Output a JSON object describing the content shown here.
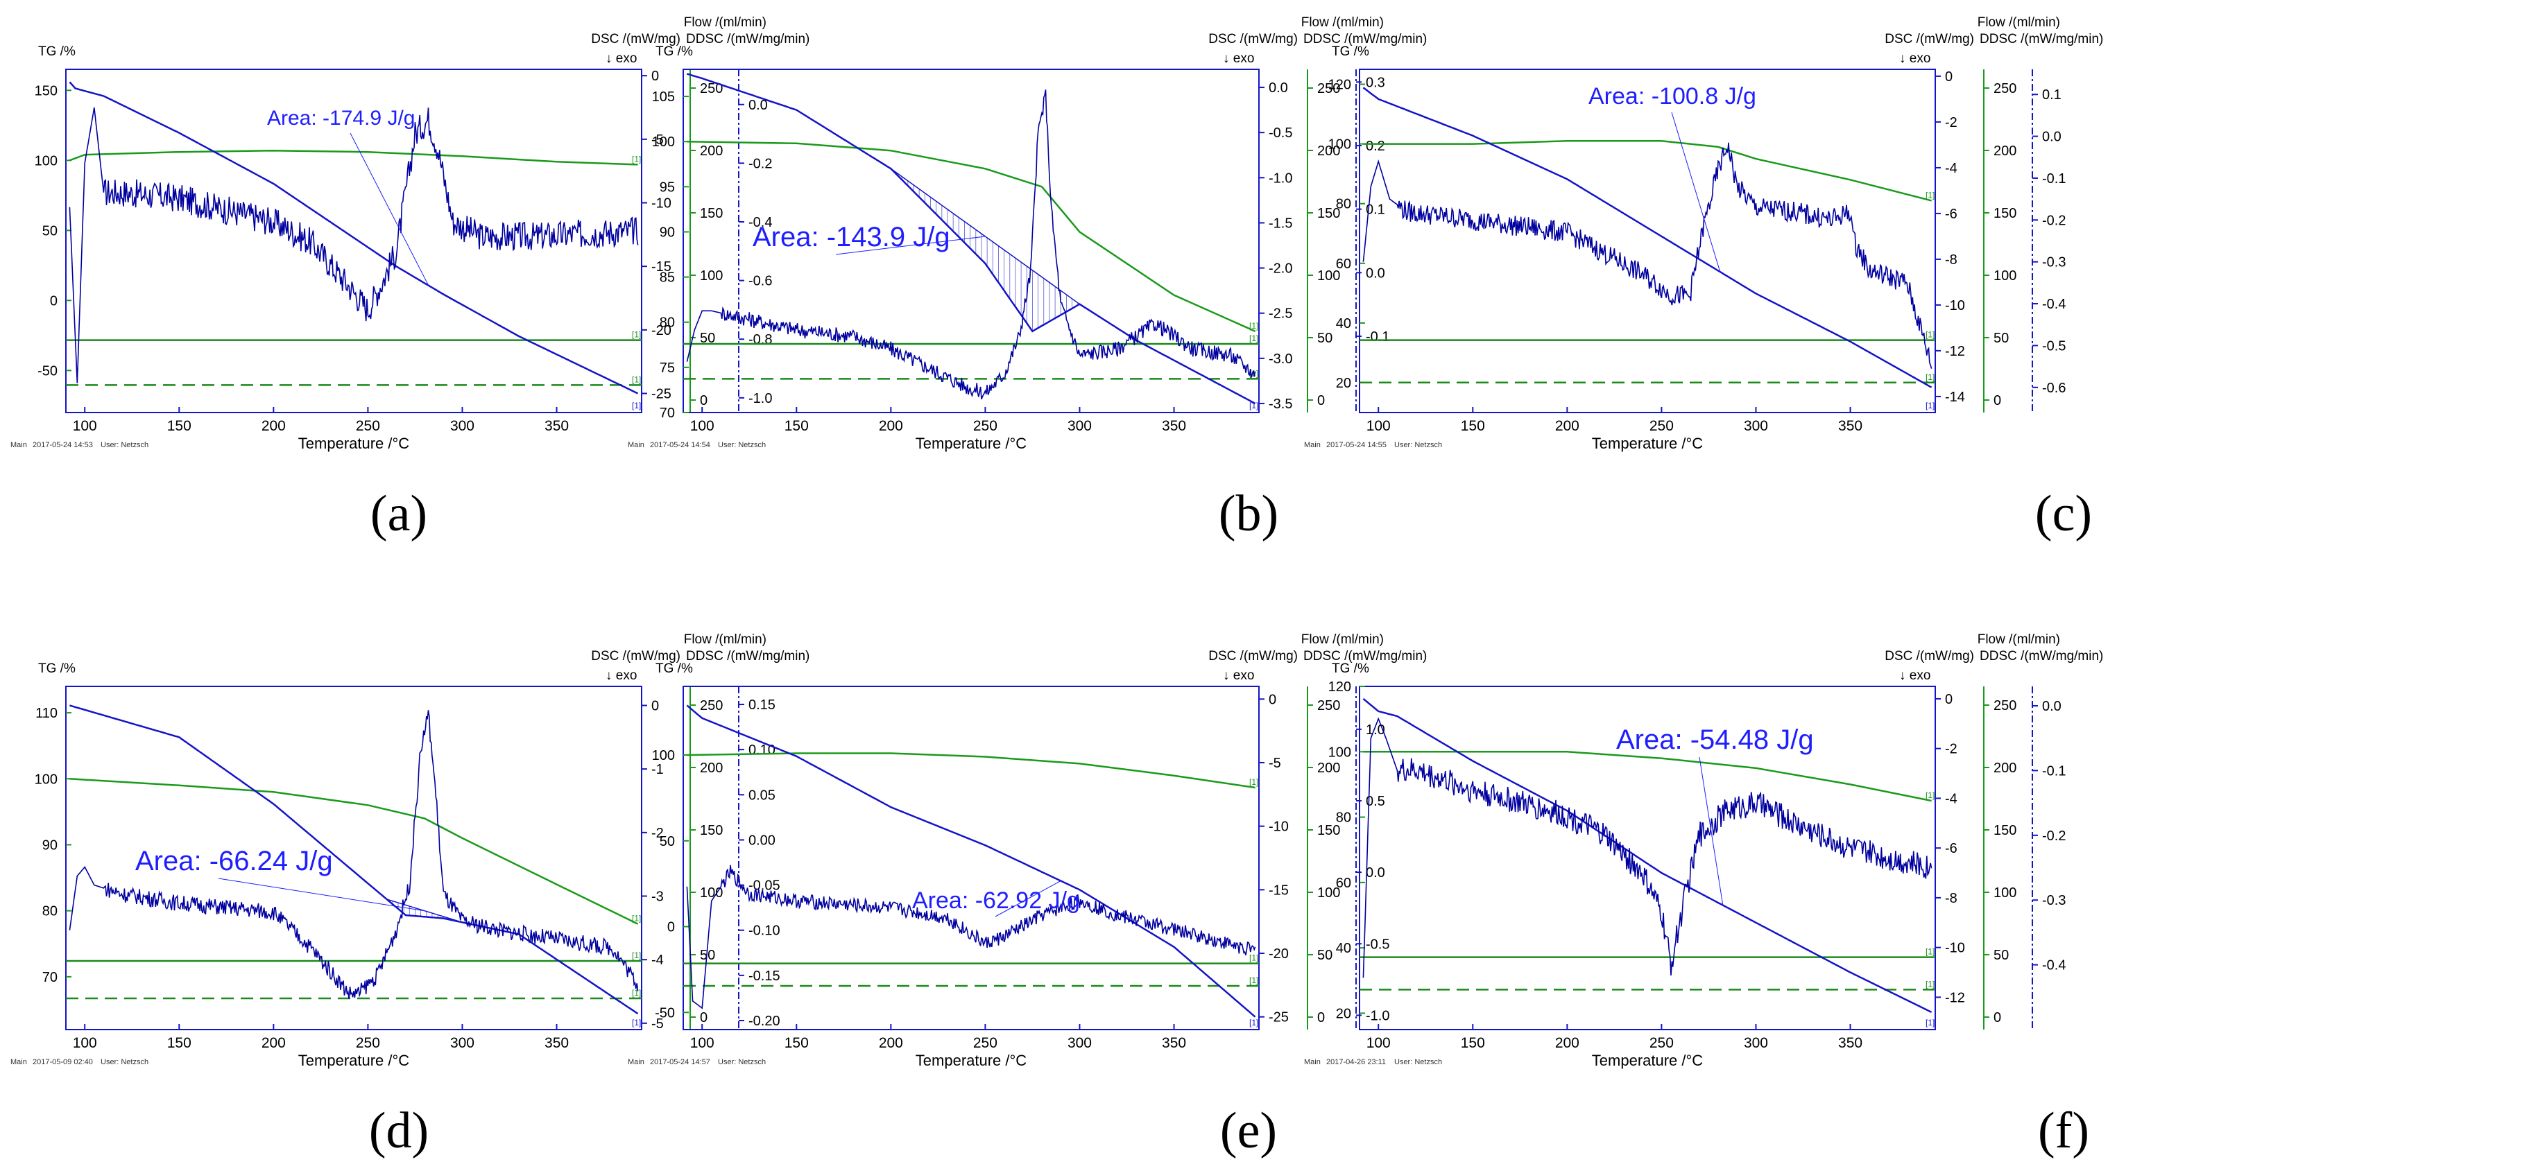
{
  "figure": {
    "axis_titles": {
      "tg": "TG /%",
      "flow": "Flow /(ml/min)",
      "dsc": "DSC /(mW/mg)",
      "ddsc": "DDSC /(mW/mg/min)",
      "exo": "↓ exo",
      "temperature": "Temperature /°C"
    },
    "footer_user": "User: Netzsch",
    "footer_main": "Main",
    "curve_tag": "[1]",
    "colors": {
      "tg": "#1a9a1a",
      "dsc": "#1414c8",
      "ddsc": "#0000a0",
      "flow": "#1a8a1a",
      "annotation": "#1e1eff"
    }
  },
  "chart_data": [
    {
      "panel": "(a)",
      "type": "line",
      "timestamp": "2017-05-24 14:53",
      "annotation": "Area: -174.9 J/g",
      "x": {
        "label": "Temperature /°C",
        "ticks": [
          "100",
          "150",
          "200",
          "250",
          "300",
          "350"
        ],
        "range": [
          90,
          395
        ]
      },
      "tg_axis": {
        "range": [
          -80,
          165
        ],
        "ticks": [
          "150",
          "100",
          "50",
          "0",
          "-50"
        ]
      },
      "dsc_axis": {
        "range": [
          -26.5,
          0.5
        ],
        "ticks": [
          "0",
          "-5",
          "-10",
          "-15",
          "-20",
          "-25"
        ]
      },
      "flow_axis": {
        "range": [
          -10,
          265
        ],
        "ticks": [
          "250",
          "200",
          "150",
          "100",
          "50",
          "0"
        ]
      },
      "ddsc_axis": {
        "range": [
          -1.05,
          0.12
        ],
        "ticks": [
          "0.0",
          "-0.2",
          "-0.4",
          "-0.6",
          "-0.8",
          "-1.0"
        ]
      },
      "tg": {
        "x": [
          92,
          100,
          150,
          200,
          250,
          300,
          350,
          393
        ],
        "y": [
          100,
          104,
          106,
          107,
          106,
          103,
          99,
          97
        ]
      },
      "dsc": {
        "x": [
          92,
          95,
          110,
          150,
          200,
          250,
          265,
          290,
          330,
          393
        ],
        "y": [
          -0.5,
          -1,
          -1.6,
          -4.5,
          -8.5,
          -13.5,
          -15,
          -17.2,
          -20.5,
          -25
        ]
      },
      "ddsc": {
        "x": [
          92,
          96,
          100,
          105,
          110,
          120,
          150,
          200,
          220,
          240,
          250,
          258,
          265,
          275,
          282,
          287,
          295,
          310,
          340,
          393
        ],
        "y": [
          -0.35,
          -0.95,
          -0.2,
          -0.01,
          -0.3,
          -0.3,
          -0.32,
          -0.4,
          -0.47,
          -0.62,
          -0.7,
          -0.6,
          -0.5,
          -0.1,
          -0.05,
          -0.15,
          -0.4,
          -0.45,
          -0.45,
          -0.43
        ],
        "noise": 0.05
      },
      "flow_lines": [
        {
          "y": 48,
          "style": "solid"
        },
        {
          "y": 12,
          "style": "dashed"
        }
      ],
      "baseline": {
        "x": [
          268,
          296
        ]
      }
    },
    {
      "panel": "(b)",
      "type": "line",
      "timestamp": "2017-05-24 14:54",
      "annotation": "Area: -143.9 J/g",
      "x": {
        "label": "Temperature /°C",
        "ticks": [
          "100",
          "150",
          "200",
          "250",
          "300",
          "350"
        ],
        "range": [
          90,
          395
        ]
      },
      "tg_axis": {
        "range": [
          70,
          108
        ],
        "ticks": [
          "105",
          "100",
          "95",
          "90",
          "85",
          "80",
          "75",
          "70"
        ]
      },
      "dsc_axis": {
        "range": [
          -3.6,
          0.2
        ],
        "ticks": [
          "0.0",
          "-0.5",
          "-1.0",
          "-1.5",
          "-2.0",
          "-2.5",
          "-3.0",
          "-3.5"
        ]
      },
      "flow_axis": {
        "range": [
          -10,
          265
        ],
        "ticks": [
          "250",
          "200",
          "150",
          "100",
          "50",
          "0"
        ]
      },
      "ddsc_axis": {
        "range": [
          -0.22,
          0.32
        ],
        "ticks": [
          "0.3",
          "0.2",
          "0.1",
          "0.0",
          "-0.1"
        ]
      },
      "tg": {
        "x": [
          92,
          150,
          200,
          250,
          280,
          300,
          350,
          393
        ],
        "y": [
          100,
          99.8,
          99,
          97,
          95,
          90,
          83,
          79
        ]
      },
      "dsc": {
        "x": [
          92,
          100,
          150,
          200,
          250,
          275,
          300,
          330,
          393
        ],
        "y": [
          0.15,
          0.1,
          -0.25,
          -0.9,
          -1.95,
          -2.7,
          -2.4,
          -2.8,
          -3.5
        ]
      },
      "ddsc": {
        "x": [
          92,
          96,
          100,
          105,
          120,
          150,
          180,
          200,
          220,
          240,
          250,
          260,
          268,
          274,
          278,
          282,
          285,
          290,
          300,
          320,
          340,
          360,
          380,
          393
        ],
        "y": [
          -0.14,
          -0.09,
          -0.06,
          -0.06,
          -0.07,
          -0.09,
          -0.1,
          -0.12,
          -0.15,
          -0.18,
          -0.19,
          -0.16,
          -0.1,
          0.0,
          0.22,
          0.28,
          0.1,
          -0.05,
          -0.13,
          -0.12,
          -0.08,
          -0.12,
          -0.13,
          -0.16
        ],
        "noise": 0.012
      },
      "flow_lines": [
        {
          "y": 45,
          "style": "solid"
        },
        {
          "y": 17,
          "style": "dashed"
        }
      ],
      "baseline": {
        "x": [
          200,
          300
        ]
      }
    },
    {
      "panel": "(c)",
      "type": "line",
      "timestamp": "2017-05-24 14:55",
      "annotation": "Area: -100.8 J/g",
      "x": {
        "label": "Temperature /°C",
        "ticks": [
          "100",
          "150",
          "200",
          "250",
          "300",
          "350"
        ],
        "range": [
          90,
          395
        ]
      },
      "tg_axis": {
        "range": [
          10,
          125
        ],
        "ticks": [
          "120",
          "100",
          "80",
          "60",
          "40",
          "20"
        ]
      },
      "dsc_axis": {
        "range": [
          -14.7,
          0.3
        ],
        "ticks": [
          "0",
          "-2",
          "-4",
          "-6",
          "-8",
          "-10",
          "-12",
          "-14"
        ]
      },
      "flow_axis": {
        "range": [
          -10,
          265
        ],
        "ticks": [
          "250",
          "200",
          "150",
          "100",
          "50",
          "0"
        ]
      },
      "ddsc_axis": {
        "range": [
          -0.66,
          0.16
        ],
        "ticks": [
          "0.1",
          "0.0",
          "-0.1",
          "-0.2",
          "-0.3",
          "-0.4",
          "-0.5",
          "-0.6"
        ]
      },
      "tg": {
        "x": [
          92,
          150,
          200,
          250,
          280,
          300,
          350,
          393
        ],
        "y": [
          100,
          100,
          101,
          101,
          99,
          95,
          88,
          81
        ]
      },
      "dsc": {
        "x": [
          92,
          100,
          150,
          200,
          250,
          300,
          350,
          393
        ],
        "y": [
          -0.5,
          -1,
          -2.6,
          -4.5,
          -7,
          -9.5,
          -11.6,
          -13.6
        ]
      },
      "ddsc": {
        "x": [
          92,
          96,
          100,
          106,
          115,
          150,
          200,
          220,
          240,
          255,
          265,
          272,
          280,
          285,
          290,
          300,
          320,
          340,
          350,
          352,
          360,
          380,
          390,
          393
        ],
        "y": [
          -0.3,
          -0.12,
          -0.06,
          -0.15,
          -0.18,
          -0.2,
          -0.23,
          -0.28,
          -0.33,
          -0.38,
          -0.38,
          -0.22,
          -0.08,
          -0.02,
          -0.12,
          -0.17,
          -0.18,
          -0.2,
          -0.18,
          -0.25,
          -0.32,
          -0.35,
          -0.5,
          -0.55
        ],
        "noise": 0.025
      },
      "flow_lines": [
        {
          "y": 48,
          "style": "solid"
        },
        {
          "y": 14,
          "style": "dashed"
        }
      ],
      "baseline": {
        "x": [
          262,
          300
        ]
      }
    },
    {
      "panel": "(d)",
      "type": "line",
      "timestamp": "2017-05-09 02:40",
      "annotation": "Area: -66.24 J/g",
      "x": {
        "label": "Temperature /°C",
        "ticks": [
          "100",
          "150",
          "200",
          "250",
          "300",
          "350"
        ],
        "range": [
          90,
          395
        ]
      },
      "tg_axis": {
        "range": [
          62,
          114
        ],
        "ticks": [
          "110",
          "100",
          "90",
          "80",
          "70"
        ]
      },
      "dsc_axis": {
        "range": [
          -5.1,
          0.3
        ],
        "ticks": [
          "0",
          "-1",
          "-2",
          "-3",
          "-4",
          "-5"
        ]
      },
      "flow_axis": {
        "range": [
          -10,
          265
        ],
        "ticks": [
          "250",
          "200",
          "150",
          "100",
          "50",
          "0"
        ]
      },
      "ddsc_axis": {
        "range": [
          -0.21,
          0.17
        ],
        "ticks": [
          "0.15",
          "0.10",
          "0.05",
          "0.00",
          "-0.05",
          "-0.10",
          "-0.15",
          "-0.20"
        ]
      },
      "tg": {
        "x": [
          92,
          150,
          200,
          250,
          280,
          300,
          350,
          393
        ],
        "y": [
          100,
          99,
          98,
          96,
          94,
          91,
          84,
          78
        ]
      },
      "dsc": {
        "x": [
          92,
          150,
          200,
          250,
          270,
          290,
          330,
          393
        ],
        "y": [
          0,
          -0.5,
          -1.55,
          -2.8,
          -3.3,
          -3.35,
          -3.6,
          -4.85
        ]
      },
      "ddsc": {
        "x": [
          92,
          96,
          100,
          105,
          120,
          150,
          200,
          220,
          240,
          245,
          255,
          265,
          272,
          278,
          282,
          286,
          290,
          300,
          320,
          350,
          380,
          393
        ],
        "y": [
          -0.1,
          -0.04,
          -0.03,
          -0.05,
          -0.06,
          -0.07,
          -0.08,
          -0.12,
          -0.17,
          -0.17,
          -0.15,
          -0.1,
          -0.05,
          0.1,
          0.14,
          0.05,
          -0.06,
          -0.09,
          -0.1,
          -0.11,
          -0.12,
          -0.16
        ],
        "noise": 0.009
      },
      "flow_lines": [
        {
          "y": 45,
          "style": "solid"
        },
        {
          "y": 15,
          "style": "dashed"
        }
      ],
      "baseline": {
        "x": [
          260,
          300
        ]
      }
    },
    {
      "panel": "(e)",
      "type": "line",
      "timestamp": "2017-05-24 14:57",
      "annotation": "Area: -62.92 J/g",
      "x": {
        "label": "Temperature /°C",
        "ticks": [
          "100",
          "150",
          "200",
          "250",
          "300",
          "350"
        ],
        "range": [
          90,
          395
        ]
      },
      "tg_axis": {
        "range": [
          -60,
          140
        ],
        "ticks": [
          "100",
          "50",
          "0",
          "-50"
        ]
      },
      "dsc_axis": {
        "range": [
          -26,
          1
        ],
        "ticks": [
          "0",
          "-5",
          "-10",
          "-15",
          "-20",
          "-25"
        ]
      },
      "flow_axis": {
        "range": [
          -10,
          265
        ],
        "ticks": [
          "250",
          "200",
          "150",
          "100",
          "50",
          "0"
        ]
      },
      "ddsc_axis": {
        "range": [
          -1.1,
          1.3
        ],
        "ticks": [
          "1.0",
          "0.5",
          "0.0",
          "-0.5",
          "-1.0"
        ]
      },
      "tg": {
        "x": [
          92,
          150,
          200,
          250,
          300,
          350,
          393
        ],
        "y": [
          100,
          101,
          101,
          99,
          95,
          88,
          81
        ]
      },
      "dsc": {
        "x": [
          92,
          100,
          150,
          200,
          250,
          300,
          350,
          393
        ],
        "y": [
          -0.5,
          -1.5,
          -4.5,
          -8.5,
          -11.5,
          -15,
          -19.5,
          -25
        ]
      },
      "ddsc": {
        "x": [
          92,
          95,
          100,
          105,
          115,
          125,
          150,
          200,
          230,
          250,
          260,
          280,
          300,
          320,
          350,
          393
        ],
        "y": [
          -0.1,
          -0.9,
          -0.95,
          -0.2,
          0.0,
          -0.15,
          -0.2,
          -0.25,
          -0.32,
          -0.5,
          -0.45,
          -0.3,
          -0.2,
          -0.3,
          -0.4,
          -0.55
        ],
        "noise": 0.05
      },
      "flow_lines": [
        {
          "y": 43,
          "style": "solid"
        },
        {
          "y": 25,
          "style": "dashed"
        }
      ],
      "baseline": {
        "x": [
          280,
          300
        ]
      }
    },
    {
      "panel": "(f)",
      "type": "line",
      "timestamp": "2017-04-26 23:11",
      "annotation": "Area: -54.48 J/g",
      "x": {
        "label": "Temperature /°C",
        "ticks": [
          "100",
          "150",
          "200",
          "250",
          "300",
          "350"
        ],
        "range": [
          90,
          395
        ]
      },
      "tg_axis": {
        "range": [
          15,
          120
        ],
        "ticks": [
          "120",
          "100",
          "80",
          "60",
          "40",
          "20"
        ]
      },
      "dsc_axis": {
        "range": [
          -13.3,
          0.5
        ],
        "ticks": [
          "0",
          "-2",
          "-4",
          "-6",
          "-8",
          "-10",
          "-12"
        ]
      },
      "flow_axis": {
        "range": [
          -10,
          265
        ],
        "ticks": [
          "250",
          "200",
          "150",
          "100",
          "50",
          "0"
        ]
      },
      "ddsc_axis": {
        "range": [
          -0.5,
          0.03
        ],
        "ticks": [
          "0.0",
          "-0.1",
          "-0.2",
          "-0.3",
          "-0.4"
        ]
      },
      "tg": {
        "x": [
          92,
          150,
          200,
          250,
          300,
          350,
          393
        ],
        "y": [
          100,
          100,
          100,
          98,
          95,
          90,
          85
        ]
      },
      "dsc": {
        "x": [
          92,
          100,
          110,
          150,
          200,
          250,
          300,
          350,
          393
        ],
        "y": [
          0,
          -0.5,
          -0.7,
          -2.5,
          -4.5,
          -7,
          -9,
          -11,
          -12.6
        ]
      },
      "ddsc": {
        "x": [
          92,
          96,
          100,
          104,
          110,
          120,
          150,
          200,
          220,
          240,
          250,
          255,
          262,
          270,
          285,
          300,
          320,
          350,
          393
        ],
        "y": [
          -0.42,
          -0.05,
          -0.02,
          -0.05,
          -0.1,
          -0.1,
          -0.13,
          -0.17,
          -0.2,
          -0.26,
          -0.32,
          -0.4,
          -0.3,
          -0.2,
          -0.16,
          -0.15,
          -0.18,
          -0.22,
          -0.25
        ],
        "noise": 0.02
      },
      "flow_lines": [
        {
          "y": 48,
          "style": "solid"
        },
        {
          "y": 22,
          "style": "dashed"
        }
      ],
      "baseline": {
        "x": [
          265,
          300
        ]
      }
    }
  ]
}
